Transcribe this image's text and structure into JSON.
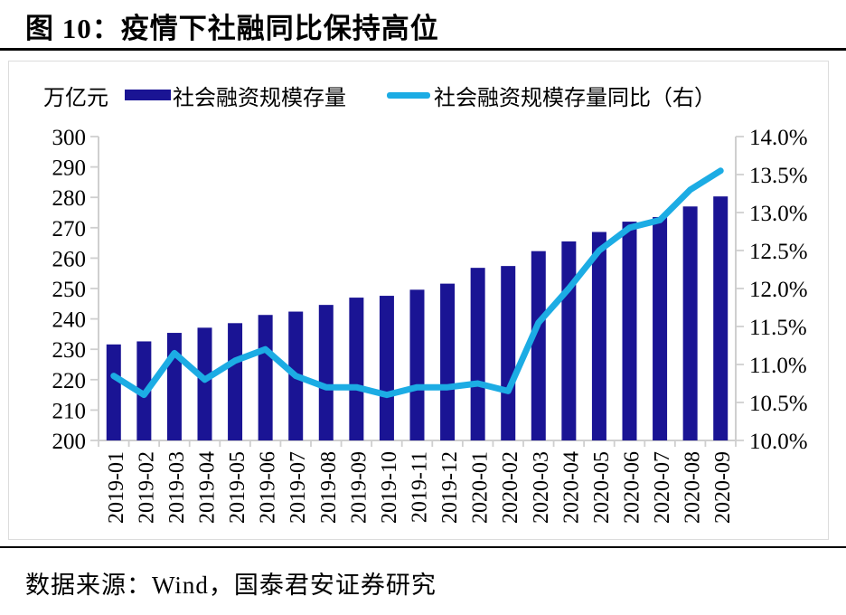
{
  "title": "图 10：疫情下社融同比保持高位",
  "source": "数据来源：Wind，国泰君安证券研究",
  "colors": {
    "bar": "#1a1494",
    "line": "#1cace4",
    "axis": "#cfcfcf",
    "rule": "#000000"
  },
  "chart_data": {
    "type": "bar",
    "subtype": "bar+line combo, dual axis",
    "unit_label": "万亿元",
    "legend_position": "top",
    "grid": false,
    "categories": [
      "2019-01",
      "2019-02",
      "2019-03",
      "2019-04",
      "2019-05",
      "2019-06",
      "2019-07",
      "2019-08",
      "2019-09",
      "2019-10",
      "2019-11",
      "2019-12",
      "2020-01",
      "2020-02",
      "2020-03",
      "2020-04",
      "2020-05",
      "2020-06",
      "2020-07",
      "2020-08",
      "2020-09"
    ],
    "series": [
      {
        "name": "社会融资规模存量",
        "type": "bar",
        "axis": "left",
        "color": "#1a1494",
        "values": [
          231.6,
          232.6,
          235.4,
          237.1,
          238.6,
          241.3,
          242.4,
          244.6,
          247.0,
          247.6,
          249.6,
          251.6,
          256.8,
          257.4,
          262.3,
          265.5,
          268.6,
          272.0,
          273.5,
          277.0,
          280.3
        ]
      },
      {
        "name": "社会融资规模存量同比（右）",
        "type": "line",
        "axis": "right",
        "color": "#1cace4",
        "values": [
          10.85,
          10.6,
          11.15,
          10.8,
          11.05,
          11.2,
          10.85,
          10.7,
          10.7,
          10.6,
          10.7,
          10.7,
          10.75,
          10.65,
          11.55,
          12.0,
          12.5,
          12.8,
          12.9,
          13.3,
          13.55
        ]
      }
    ],
    "left_axis": {
      "min": 200,
      "max": 300,
      "step": 10,
      "tick_labels": [
        "300",
        "290",
        "280",
        "270",
        "260",
        "250",
        "240",
        "230",
        "220",
        "210",
        "200"
      ]
    },
    "right_axis": {
      "min": 10.0,
      "max": 14.0,
      "step": 0.5,
      "tick_labels": [
        "14.0%",
        "13.5%",
        "13.0%",
        "12.5%",
        "12.0%",
        "11.5%",
        "11.0%",
        "10.5%",
        "10.0%"
      ]
    }
  }
}
